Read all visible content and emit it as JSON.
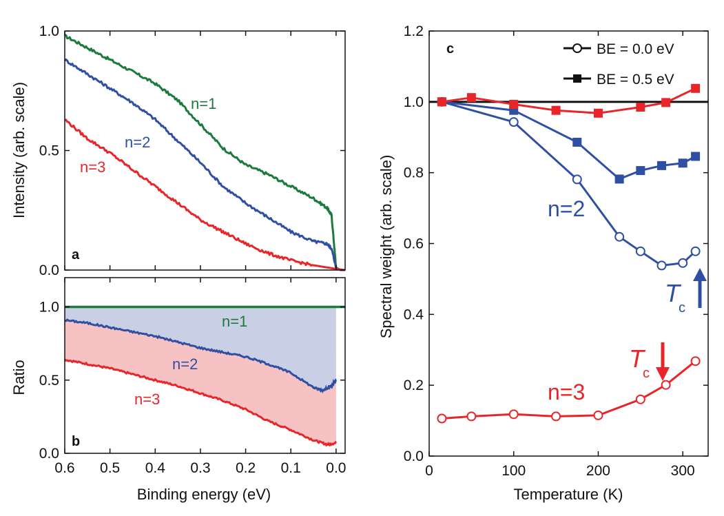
{
  "colors": {
    "green": "#1b7a3c",
    "blue": "#2f4fa3",
    "red": "#e8262a",
    "black": "#111111",
    "blueFill": "#c9d0e6",
    "redFill": "#f6c2c4"
  },
  "chart_data": [
    {
      "id": "a",
      "panel_label": "a",
      "type": "line",
      "xlabel": "",
      "ylabel": "Intensity (arb. scale)",
      "xlim": [
        0.6,
        -0.02
      ],
      "ylim": [
        0,
        1.0
      ],
      "x_ticks": [
        "0.6",
        "0.5",
        "0.4",
        "0.3",
        "0.2",
        "0.1",
        "0.0"
      ],
      "y_ticks": [
        "0.0",
        "0.5",
        "1.0"
      ],
      "series": [
        {
          "name": "n=1",
          "color": "green",
          "x": [
            0.6,
            0.55,
            0.5,
            0.45,
            0.4,
            0.35,
            0.3,
            0.25,
            0.2,
            0.15,
            0.1,
            0.05,
            0.02,
            0.01,
            0.0,
            -0.01,
            -0.02
          ],
          "y": [
            0.98,
            0.93,
            0.88,
            0.83,
            0.78,
            0.71,
            0.61,
            0.51,
            0.44,
            0.4,
            0.35,
            0.3,
            0.26,
            0.23,
            0.01,
            0.0,
            0.0
          ]
        },
        {
          "name": "n=2",
          "color": "blue",
          "x": [
            0.6,
            0.55,
            0.5,
            0.45,
            0.4,
            0.35,
            0.3,
            0.25,
            0.2,
            0.15,
            0.1,
            0.05,
            0.02,
            0.01,
            0.0,
            -0.01,
            -0.02
          ],
          "y": [
            0.88,
            0.82,
            0.76,
            0.7,
            0.63,
            0.54,
            0.45,
            0.35,
            0.28,
            0.22,
            0.16,
            0.12,
            0.11,
            0.09,
            0.01,
            0.0,
            0.0
          ]
        },
        {
          "name": "n=3",
          "color": "red",
          "x": [
            0.6,
            0.55,
            0.5,
            0.45,
            0.4,
            0.35,
            0.3,
            0.25,
            0.2,
            0.15,
            0.1,
            0.05,
            0.0,
            -0.02
          ],
          "y": [
            0.63,
            0.55,
            0.49,
            0.42,
            0.35,
            0.28,
            0.21,
            0.16,
            0.11,
            0.07,
            0.04,
            0.02,
            0.005,
            0.0
          ]
        }
      ]
    },
    {
      "id": "b",
      "panel_label": "b",
      "type": "area",
      "xlabel": "Binding energy (eV)",
      "ylabel": "Ratio",
      "xlim": [
        0.6,
        -0.02
      ],
      "ylim": [
        0,
        1.2
      ],
      "x_ticks": [
        "0.6",
        "0.5",
        "0.4",
        "0.3",
        "0.2",
        "0.1",
        "0.0"
      ],
      "y_ticks": [
        "0.0",
        "0.5",
        "1.0"
      ],
      "series": [
        {
          "name": "n=1",
          "color": "green",
          "x": [
            0.6,
            -0.02
          ],
          "y": [
            1.0,
            1.0
          ]
        },
        {
          "name": "n=2",
          "color": "blue",
          "x": [
            0.6,
            0.55,
            0.5,
            0.45,
            0.4,
            0.35,
            0.3,
            0.25,
            0.2,
            0.15,
            0.1,
            0.05,
            0.03,
            0.01,
            0.0
          ],
          "y": [
            0.91,
            0.89,
            0.86,
            0.83,
            0.8,
            0.76,
            0.72,
            0.69,
            0.66,
            0.61,
            0.55,
            0.45,
            0.43,
            0.46,
            0.5
          ]
        },
        {
          "name": "n=3",
          "color": "red",
          "x": [
            0.6,
            0.55,
            0.5,
            0.45,
            0.4,
            0.35,
            0.3,
            0.25,
            0.2,
            0.15,
            0.1,
            0.05,
            0.02,
            0.0
          ],
          "y": [
            0.64,
            0.61,
            0.58,
            0.54,
            0.5,
            0.46,
            0.41,
            0.36,
            0.3,
            0.22,
            0.16,
            0.09,
            0.06,
            0.07
          ]
        }
      ]
    },
    {
      "id": "c",
      "panel_label": "c",
      "type": "line",
      "xlabel": "Temperature (K)",
      "ylabel": "Spectral weight (arb. scale)",
      "xlim": [
        0,
        330
      ],
      "ylim": [
        0,
        1.2
      ],
      "x_ticks": [
        "0",
        "100",
        "200",
        "300"
      ],
      "y_ticks": [
        "0.0",
        "0.2",
        "0.4",
        "0.6",
        "0.8",
        "1.0",
        "1.2"
      ],
      "reference_line": 1.0,
      "legend": {
        "placement": "top-right",
        "entries": [
          {
            "label": "BE = 0.0 eV",
            "marker": "open-circle"
          },
          {
            "label": "BE = 0.5 eV",
            "marker": "filled-square"
          }
        ]
      },
      "series": [
        {
          "name": "n=2",
          "color": "blue",
          "marker": "open-circle",
          "x": [
            15,
            100,
            175,
            225,
            250,
            275,
            300,
            315
          ],
          "y": [
            1.0,
            0.943,
            0.781,
            0.619,
            0.578,
            0.538,
            0.545,
            0.578
          ]
        },
        {
          "name": "n=2",
          "color": "blue",
          "marker": "filled-square",
          "x": [
            15,
            100,
            175,
            225,
            250,
            275,
            300,
            315
          ],
          "y": [
            1.0,
            0.976,
            0.886,
            0.782,
            0.806,
            0.82,
            0.827,
            0.846
          ]
        },
        {
          "name": "n=3",
          "color": "red",
          "marker": "open-circle",
          "x": [
            15,
            50,
            100,
            150,
            200,
            250,
            280,
            315
          ],
          "y": [
            0.106,
            0.112,
            0.118,
            0.112,
            0.115,
            0.16,
            0.201,
            0.268
          ]
        },
        {
          "name": "n=3",
          "color": "red",
          "marker": "filled-square",
          "x": [
            15,
            50,
            100,
            150,
            200,
            250,
            280,
            315
          ],
          "y": [
            1.0,
            1.012,
            0.993,
            0.976,
            0.968,
            0.985,
            0.998,
            1.038
          ]
        }
      ],
      "annotations": [
        {
          "text": "T",
          "subscript": "c",
          "color": "blue",
          "x": 315,
          "y": 0.42,
          "arrow": "up"
        },
        {
          "text": "T",
          "subscript": "c",
          "color": "red",
          "x": 270,
          "y": 0.27,
          "arrow": "down"
        }
      ],
      "series_labels": [
        {
          "text": "n=2",
          "color": "blue"
        },
        {
          "text": "n=3",
          "color": "red"
        }
      ]
    }
  ]
}
